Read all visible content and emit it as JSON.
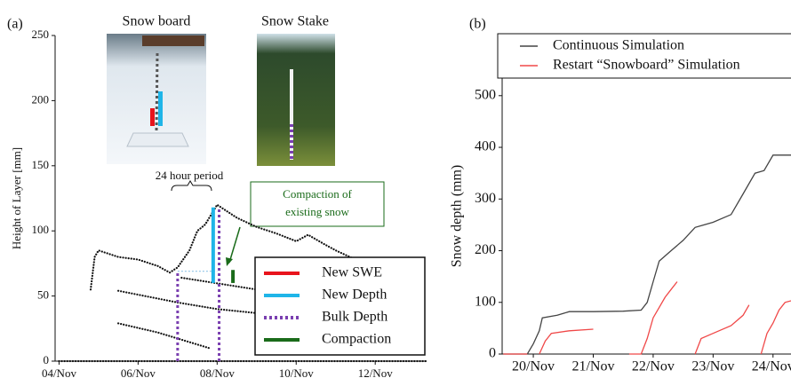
{
  "chart_data": [
    {
      "type": "line",
      "label": "(a)",
      "ylabel": "Height of Layer [mm]",
      "xlim": [
        3.9,
        13.3
      ],
      "ylim": [
        0,
        250
      ],
      "yticks": [
        0,
        50,
        100,
        150,
        200,
        250
      ],
      "xticks": [
        {
          "value": 4,
          "label": "04/Nov"
        },
        {
          "value": 6,
          "label": "06/Nov"
        },
        {
          "value": 8,
          "label": "08/Nov"
        },
        {
          "value": 10,
          "label": "10/Nov"
        },
        {
          "value": 12,
          "label": "12/Nov"
        }
      ],
      "photo_labels": [
        "Snow board",
        "Snow Stake"
      ],
      "annotations": [
        "24 hour period",
        "Compaction of",
        "existing snow"
      ],
      "layers": [
        {
          "color": "#111",
          "x": [
            4.8,
            4.9,
            5.0,
            5.5,
            6.0,
            6.5,
            6.8,
            7.0,
            7.3,
            7.5,
            7.7,
            7.8,
            8.0,
            8.5,
            9.0,
            9.5,
            10.0,
            10.3,
            10.7,
            11.0,
            11.5
          ],
          "values": [
            55,
            80,
            85,
            80,
            78,
            73,
            68,
            72,
            85,
            100,
            105,
            110,
            120,
            110,
            103,
            98,
            92,
            97,
            90,
            85,
            78
          ]
        },
        {
          "color": "#111",
          "x": [
            5.5,
            7.0,
            8.0,
            9.3
          ],
          "values": [
            54,
            45,
            40,
            36
          ]
        },
        {
          "color": "#111",
          "x": [
            7.1,
            9.0,
            10.5,
            11.5
          ],
          "values": [
            64,
            55,
            46,
            40
          ]
        },
        {
          "color": "#111",
          "x": [
            5.5,
            6.5,
            7.8
          ],
          "values": [
            29,
            22,
            10
          ]
        },
        {
          "color": "#111",
          "x": [
            4.0,
            13.3
          ],
          "values": [
            0,
            0
          ]
        }
      ],
      "guide": {
        "color": "#8fc3e8",
        "x": [
          7.0,
          8.0
        ],
        "values": [
          69,
          69
        ]
      },
      "markers": [
        {
          "name": "New SWE",
          "color": "#e8141c",
          "dashed": false,
          "lines": []
        },
        {
          "name": "New Depth",
          "color": "#1fb5e8",
          "dashed": false,
          "lines": [
            {
              "x": 7.9,
              "values": [
                60,
                118
              ]
            }
          ]
        },
        {
          "name": "Bulk Depth",
          "color": "#7a3fb0",
          "dashed": true,
          "lines": [
            {
              "x": 7.0,
              "values": [
                0,
                68
              ]
            },
            {
              "x": 8.05,
              "values": [
                0,
                118
              ]
            }
          ]
        },
        {
          "name": "Compaction",
          "color": "#1a6b1a",
          "dashed": false,
          "lines": [
            {
              "x": 8.4,
              "values": [
                60,
                70
              ]
            }
          ]
        }
      ]
    },
    {
      "type": "line",
      "label": "(b)",
      "ylabel": "Snow depth (mm)",
      "xlim": [
        19.48,
        24.3
      ],
      "ylim": [
        0,
        534
      ],
      "yticks": [
        0,
        100,
        200,
        300,
        400,
        500
      ],
      "xticks": [
        {
          "value": 20,
          "label": "20/Nov"
        },
        {
          "value": 21,
          "label": "21/Nov"
        },
        {
          "value": 22,
          "label": "22/Nov"
        },
        {
          "value": 23,
          "label": "23/Nov"
        },
        {
          "value": 24,
          "label": "24/Nov"
        }
      ],
      "series": [
        {
          "name": "Continuous Simulation",
          "color": "#444",
          "x": [
            19.5,
            19.9,
            20.0,
            20.1,
            20.15,
            20.4,
            20.6,
            21.0,
            21.5,
            21.8,
            21.9,
            22.0,
            22.1,
            22.3,
            22.5,
            22.7,
            23.0,
            23.3,
            23.5,
            23.7,
            23.85,
            24.0,
            24.3
          ],
          "values": [
            0,
            0,
            20,
            45,
            70,
            75,
            82,
            82,
            83,
            85,
            100,
            140,
            180,
            200,
            220,
            245,
            255,
            270,
            310,
            350,
            355,
            385,
            385
          ]
        },
        {
          "name": "Restart “Snowboard” Simulation",
          "color": "#f04848",
          "x": [
            19.5,
            19.9,
            20.0,
            20.1,
            20.2,
            20.3,
            20.6,
            21.0,
            21.5,
            21.6,
            21.8,
            21.9,
            22.0,
            22.2,
            22.3,
            22.4,
            22.6,
            22.7,
            22.8,
            23.0,
            23.3,
            23.5,
            23.6,
            23.7,
            23.8,
            23.9,
            24.0,
            24.1,
            24.2,
            24.3
          ],
          "values": [
            0,
            0,
            null,
            0,
            25,
            40,
            45,
            48,
            null,
            0,
            0,
            30,
            70,
            110,
            125,
            140,
            null,
            0,
            30,
            40,
            55,
            75,
            95,
            null,
            0,
            40,
            60,
            85,
            100,
            103
          ]
        }
      ]
    }
  ]
}
